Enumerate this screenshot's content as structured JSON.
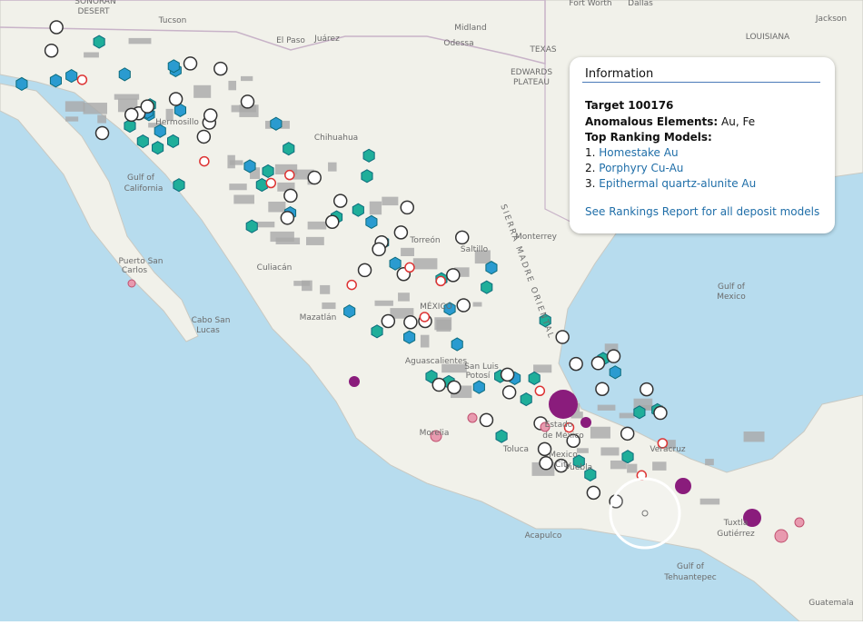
{
  "map": {
    "labels": [
      "SONORAN",
      "DESERT",
      "Tucson",
      "Fort Worth",
      "Dallas",
      "Jackson",
      "Midland",
      "Odessa",
      "TEXAS",
      "LOUISIANA",
      "EDWARDS",
      "PLATEAU",
      "El Paso",
      "Juárez",
      "Hermosillo",
      "Chihuahua",
      "Gulf of",
      "California",
      "Torreón",
      "Saltillo",
      "Monterrey",
      "Puerto San",
      "Carlos",
      "Cabo San",
      "Lucas",
      "Culiacán",
      "Mazatlán",
      "MÉXICO",
      "Aguascalientes",
      "San Luis",
      "Potosí",
      "Gulf of",
      "Mexico",
      "Morelia",
      "Toluca",
      "Mexico",
      "City",
      "Estado",
      "de México",
      "Puebla",
      "Veracruz",
      "Acapulco",
      "Gulf of",
      "Tehuantepec",
      "Tuxtla",
      "Gutiérrez",
      "Guatemala",
      "SIERRA MADRE ORIENTAL"
    ]
  },
  "popup": {
    "title": "Information",
    "target": "Target 100176",
    "anomalous_label": "Anomalous Elements:",
    "anomalous_value": "Au, Fe",
    "models_label": "Top Ranking Models:",
    "models": [
      {
        "number": "1.",
        "name": "Homestake Au"
      },
      {
        "number": "2.",
        "name": "Porphyry Cu-Au"
      },
      {
        "number": "3.",
        "name": "Epithermal quartz-alunite Au"
      }
    ],
    "link": "See Rankings Report for all deposit models"
  }
}
